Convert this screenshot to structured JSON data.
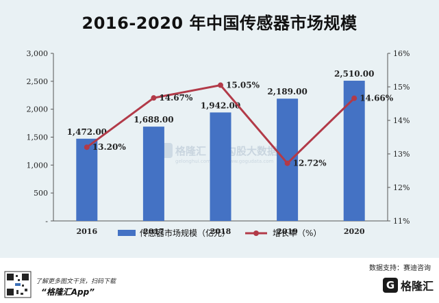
{
  "chart_data": {
    "type": "bar+line",
    "title": "2016-2020 年中国传感器市场规模",
    "categories": [
      "2016",
      "2017",
      "2018",
      "2019",
      "2020"
    ],
    "series": [
      {
        "name": "传感器市场规模（亿元）",
        "type": "bar",
        "axis": "left",
        "color": "#4472c4",
        "values": [
          1472.0,
          1688.0,
          1942.0,
          2189.0,
          2510.0
        ],
        "labels": [
          "1,472.00",
          "1,688.00",
          "1,942.00",
          "2,189.00",
          "2,510.00"
        ]
      },
      {
        "name": "增长率（%）",
        "type": "line",
        "axis": "right",
        "color": "#b23a48",
        "values": [
          13.2,
          14.67,
          15.05,
          12.72,
          14.66
        ],
        "labels": [
          "13.20%",
          "14.67%",
          "15.05%",
          "12.72%",
          "14.66%"
        ]
      }
    ],
    "y_left": {
      "min": 0,
      "max": 3000,
      "ticks": [
        0,
        500,
        1000,
        1500,
        2000,
        2500,
        3000
      ],
      "tick_labels": [
        "-",
        "500",
        "1,000",
        "1,500",
        "2,000",
        "2,500",
        "3,000"
      ]
    },
    "y_right": {
      "min": 11,
      "max": 16,
      "ticks": [
        11,
        12,
        13,
        14,
        15,
        16
      ],
      "tick_labels": [
        "11%",
        "12%",
        "13%",
        "14%",
        "15%",
        "16%"
      ]
    },
    "legend_position": "bottom",
    "grid": false
  },
  "source_note": "数据支持：赛迪咨询",
  "watermark": {
    "brand": "格隆汇",
    "site1": "gelonghui.com",
    "mid": "勾股大数据",
    "site2": "www.gogudata.com"
  },
  "footer": {
    "promo_line1": "了解更多图文干货，扫码下载",
    "promo_line2": "“格隆汇App”",
    "brand_mark": "G",
    "brand_text": "格隆汇"
  }
}
